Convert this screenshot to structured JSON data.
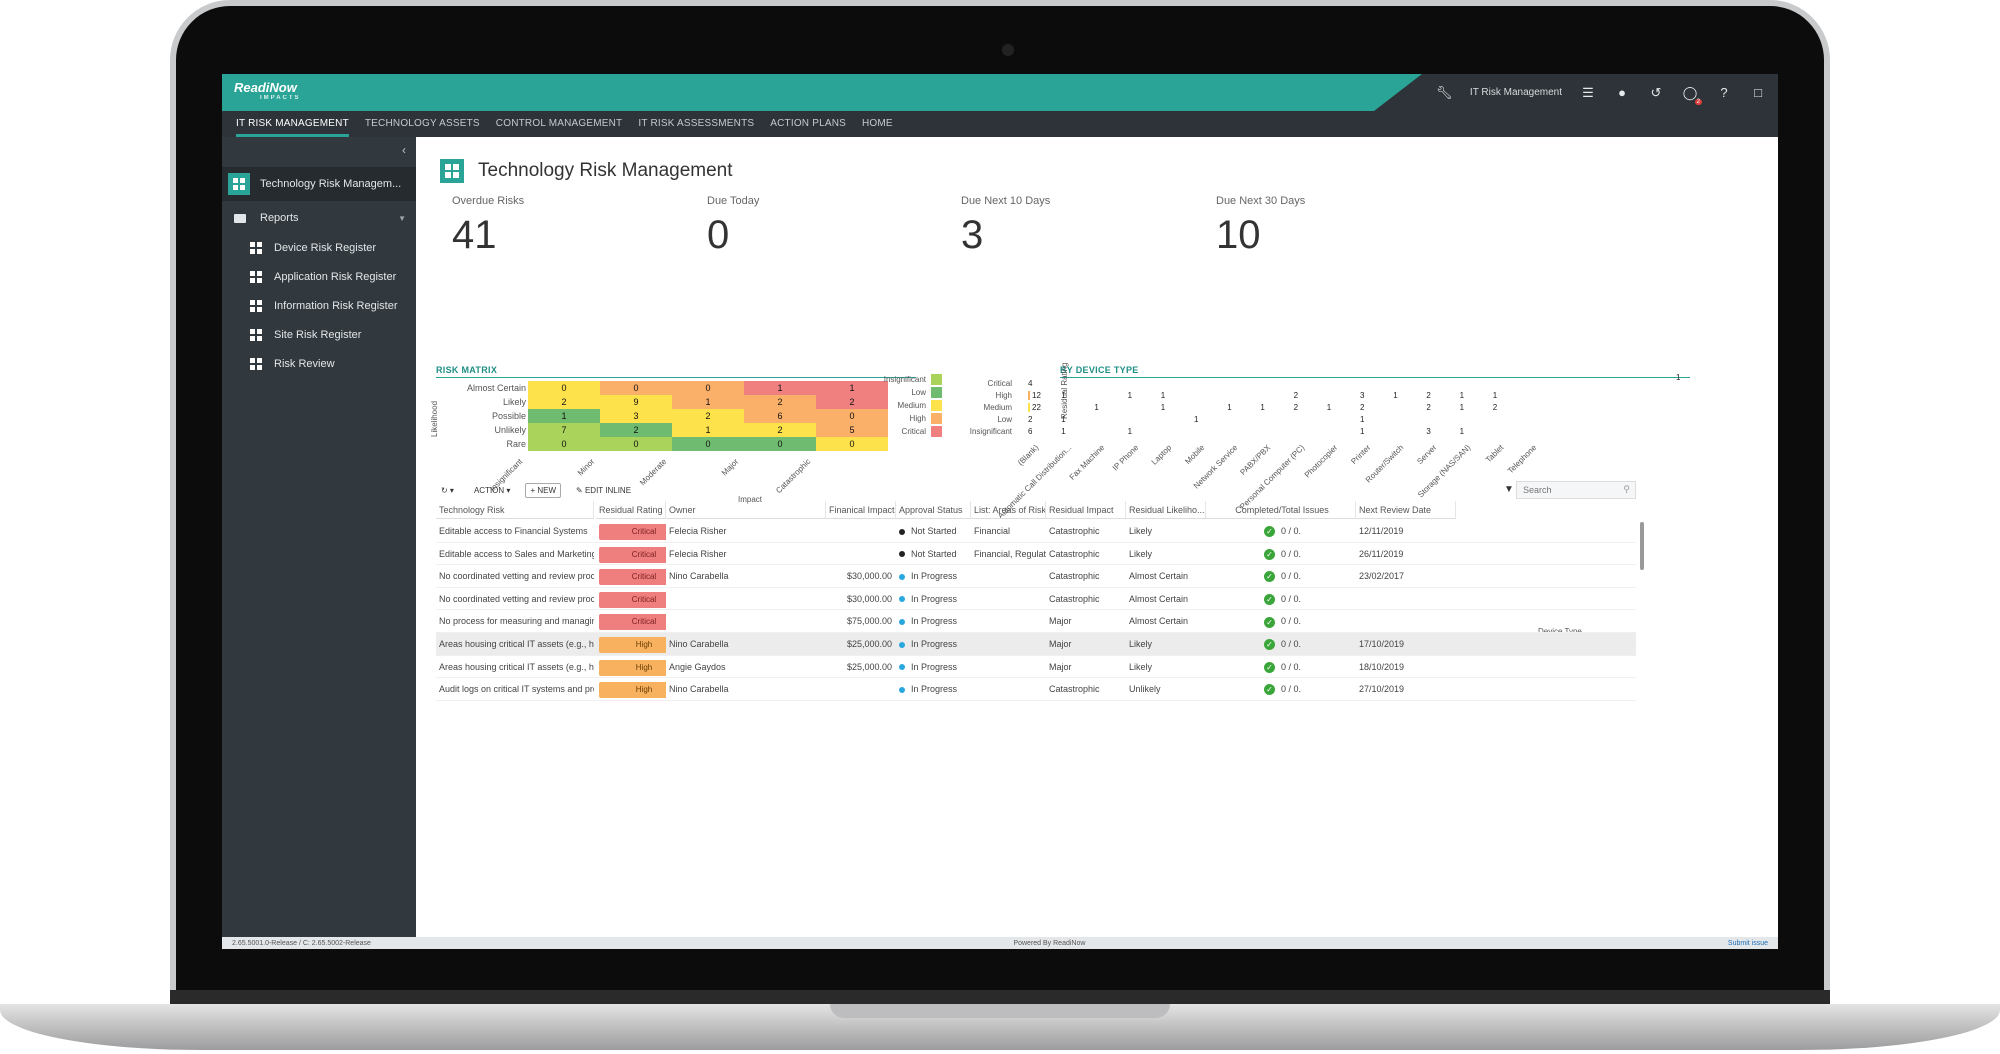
{
  "topbar": {
    "logo": "ReadiNow",
    "logo_sub": "IMPACTS",
    "app": "IT Risk Management",
    "notif_count": "2"
  },
  "nav": [
    "IT RISK MANAGEMENT",
    "TECHNOLOGY ASSETS",
    "CONTROL MANAGEMENT",
    "IT RISK ASSESSMENTS",
    "ACTION PLANS",
    "HOME"
  ],
  "sidebar": {
    "top": "Technology Risk Managem...",
    "reports": "Reports",
    "items": [
      "Device Risk Register",
      "Application Risk Register",
      "Information Risk Register",
      "Site Risk Register",
      "Risk Review"
    ]
  },
  "page_title": "Technology Risk Management",
  "kpis": [
    {
      "label": "Overdue Risks",
      "value": "41"
    },
    {
      "label": "Due Today",
      "value": "0"
    },
    {
      "label": "Due Next 10 Days",
      "value": "3"
    },
    {
      "label": "Due Next 30 Days",
      "value": "10"
    }
  ],
  "matrix": {
    "title": "RISK MATRIX",
    "ylabel": "Likelihood",
    "xlabel": "Impact",
    "rows": [
      "Almost Certain",
      "Likely",
      "Possible",
      "Unlikely",
      "Rare"
    ],
    "cols": [
      "Insignificant",
      "Minor",
      "Moderate",
      "Major",
      "Catastrophic"
    ],
    "values": [
      [
        0,
        0,
        0,
        1,
        1
      ],
      [
        2,
        9,
        1,
        2,
        2
      ],
      [
        1,
        3,
        2,
        6,
        0
      ],
      [
        7,
        2,
        1,
        2,
        5
      ],
      [
        0,
        0,
        0,
        0,
        0
      ]
    ],
    "colors": [
      [
        "#fde24b",
        "#fbb06a",
        "#fbb06a",
        "#f08080",
        "#f08080"
      ],
      [
        "#fde24b",
        "#fde24b",
        "#fbb06a",
        "#fbb06a",
        "#f08080"
      ],
      [
        "#6fbb6f",
        "#fde24b",
        "#fde24b",
        "#fbb06a",
        "#fbb06a"
      ],
      [
        "#a9d35a",
        "#6fbb6f",
        "#fde24b",
        "#fde24b",
        "#fbb06a"
      ],
      [
        "#a9d35a",
        "#a9d35a",
        "#6fbb6f",
        "#6fbb6f",
        "#fde24b"
      ]
    ],
    "legend": [
      {
        "label": "Insignificant",
        "color": "#a9d35a"
      },
      {
        "label": "Low",
        "color": "#6fbb6f"
      },
      {
        "label": "Medium",
        "color": "#fde24b"
      },
      {
        "label": "High",
        "color": "#fbb06a"
      },
      {
        "label": "Critical",
        "color": "#f08080"
      }
    ]
  },
  "device": {
    "title": "BY DEVICE TYPE",
    "ylabel": "Residual Rating",
    "xlabel": "Device Type",
    "rows": [
      "Critical",
      "High",
      "Medium",
      "Low",
      "Insignificant"
    ],
    "cols": [
      "(Blank)",
      "Automatic Call Distribution...",
      "Fax Machine",
      "IP Phone",
      "Laptop",
      "Mobile",
      "Network Service",
      "PABX/PBX",
      "Personal Computer (PC)",
      "Photocopier",
      "Printer",
      "Router/Switch",
      "Server",
      "Storage (NAS/SAN)",
      "Tablet",
      "Telephone"
    ],
    "cells": [
      [
        "4",
        "",
        "",
        "",
        "",
        "",
        "",
        "",
        "",
        "",
        "",
        "",
        "",
        "",
        "",
        ""
      ],
      [
        "12",
        "1",
        "",
        "1",
        "1",
        "",
        "",
        "",
        "2",
        "",
        "3",
        "1",
        "2",
        "1",
        "1",
        ""
      ],
      [
        "22",
        "",
        "1",
        "",
        "1",
        "",
        "1",
        "1",
        "2",
        "1",
        "2",
        "",
        "2",
        "1",
        "2",
        ""
      ],
      [
        "2",
        "1",
        "",
        "",
        "",
        "1",
        "",
        "",
        "",
        "",
        "1",
        "",
        "",
        "",
        "",
        ""
      ],
      [
        "6",
        "1",
        "",
        "1",
        "",
        "",
        "",
        "",
        "",
        "",
        "1",
        "",
        "3",
        "1",
        "",
        ""
      ]
    ],
    "extra": "1"
  },
  "toolbar": {
    "action": "ACTION",
    "new": "NEW",
    "edit": "EDIT INLINE",
    "search": "Search"
  },
  "table": {
    "headers": [
      "Technology Risk",
      "Residual Rating",
      "Owner",
      "Finanical Impact",
      "Approval Status",
      "List: Areas of Risk",
      "Residual Impact",
      "Residual Likeliho...",
      "Completed/Total Issues",
      "Next Review Date"
    ],
    "rows": [
      {
        "risk": "Editable access to Financial Systems",
        "rating": "Critical",
        "owner": "Felecia Risher",
        "impact": "",
        "status": "Not Started",
        "areas": "Financial",
        "rimpact": "Catastrophic",
        "rlike": "Likely",
        "issues": "0 / 0.",
        "date": "12/11/2019"
      },
      {
        "risk": "Editable access to Sales and Marketing Sy...",
        "rating": "Critical",
        "owner": "Felecia Risher",
        "impact": "",
        "status": "Not Started",
        "areas": "Financial, Regulatory",
        "rimpact": "Catastrophic",
        "rlike": "Likely",
        "issues": "0 / 0.",
        "date": "26/11/2019"
      },
      {
        "risk": "No coordinated vetting and review proce...",
        "rating": "Critical",
        "owner": "Nino Carabella",
        "impact": "$30,000.00",
        "status": "In Progress",
        "areas": "",
        "rimpact": "Catastrophic",
        "rlike": "Almost Certain",
        "issues": "0 / 0.",
        "date": "23/02/2017"
      },
      {
        "risk": "No coordinated vetting and review proce...",
        "rating": "Critical",
        "owner": "",
        "impact": "$30,000.00",
        "status": "In Progress",
        "areas": "",
        "rimpact": "Catastrophic",
        "rlike": "Almost Certain",
        "issues": "0 / 0.",
        "date": ""
      },
      {
        "risk": "No process for measuring and managing ...",
        "rating": "Critical",
        "owner": "",
        "impact": "$75,000.00",
        "status": "In Progress",
        "areas": "",
        "rimpact": "Major",
        "rlike": "Almost Certain",
        "issues": "0 / 0.",
        "date": ""
      },
      {
        "risk": "Areas housing critical IT assets (e.g., hard...",
        "rating": "High",
        "owner": "Nino Carabella",
        "impact": "$25,000.00",
        "status": "In Progress",
        "areas": "",
        "rimpact": "Major",
        "rlike": "Likely",
        "issues": "0 / 0.",
        "date": "17/10/2019"
      },
      {
        "risk": "Areas housing critical IT assets (e.g., hard...",
        "rating": "High",
        "owner": "Angie Gaydos",
        "impact": "$25,000.00",
        "status": "In Progress",
        "areas": "",
        "rimpact": "Major",
        "rlike": "Likely",
        "issues": "0 / 0.",
        "date": "18/10/2019"
      },
      {
        "risk": "Audit logs on critical IT systems and proc...",
        "rating": "High",
        "owner": "Nino Carabella",
        "impact": "",
        "status": "In Progress",
        "areas": "",
        "rimpact": "Catastrophic",
        "rlike": "Unlikely",
        "issues": "0 / 0.",
        "date": "27/10/2019"
      }
    ]
  },
  "footer": {
    "version": "2.65.5001.0-Release / C: 2.65.5002-Release",
    "powered": "Powered By ReadiNow",
    "submit": "Submit issue"
  },
  "colors": {
    "teal": "#2ba498",
    "dark": "#2d3338",
    "sidebar": "#32393e",
    "critical": "#ef7e7e",
    "high": "#f7b15f",
    "not_started": "#222222",
    "in_progress": "#2aa7df"
  }
}
